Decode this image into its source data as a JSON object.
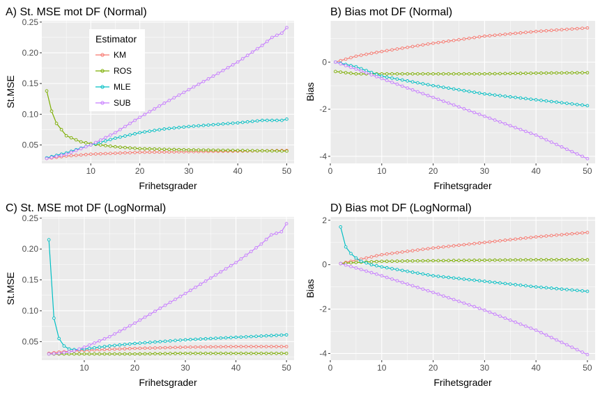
{
  "colors": {
    "KM": "#F8766D",
    "ROS": "#7CAE00",
    "MLE": "#00BFC4",
    "SUB": "#C77CFF",
    "panel_bg": "#EBEBEB",
    "grid": "#FFFFFF"
  },
  "legend": {
    "title": "Estimator",
    "entries": [
      "KM",
      "ROS",
      "MLE",
      "SUB"
    ]
  },
  "chart_data": [
    {
      "id": "A",
      "type": "line",
      "title": "A) St. MSE mot DF (Normal)",
      "xlabel": "Frihetsgrader",
      "ylabel": "St.MSE",
      "xlim": [
        0,
        51.5
      ],
      "ylim": [
        0.02,
        0.252
      ],
      "xticks": [
        10,
        20,
        30,
        40,
        50
      ],
      "yticks": [
        0.05,
        0.1,
        0.15,
        0.2,
        0.25
      ],
      "ytick_labels": [
        "0.05",
        "0.10",
        "0.15",
        "0.20",
        "0.25"
      ],
      "legend_position": "top-left",
      "x_start": 1,
      "x_end": 50,
      "series": [
        {
          "name": "KM",
          "anchors": [
            [
              1,
              0.028
            ],
            [
              5,
              0.032
            ],
            [
              10,
              0.035
            ],
            [
              20,
              0.038
            ],
            [
              30,
              0.039
            ],
            [
              40,
              0.04
            ],
            [
              50,
              0.041
            ]
          ]
        },
        {
          "name": "ROS",
          "anchors": [
            [
              1,
              0.138
            ],
            [
              2,
              0.105
            ],
            [
              3,
              0.085
            ],
            [
              5,
              0.065
            ],
            [
              8,
              0.055
            ],
            [
              10,
              0.052
            ],
            [
              15,
              0.047
            ],
            [
              20,
              0.044
            ],
            [
              30,
              0.042
            ],
            [
              40,
              0.041
            ],
            [
              50,
              0.04
            ]
          ]
        },
        {
          "name": "MLE",
          "anchors": [
            [
              1,
              0.029
            ],
            [
              5,
              0.037
            ],
            [
              10,
              0.05
            ],
            [
              15,
              0.061
            ],
            [
              20,
              0.07
            ],
            [
              25,
              0.076
            ],
            [
              30,
              0.08
            ],
            [
              40,
              0.086
            ],
            [
              45,
              0.09
            ],
            [
              49,
              0.09
            ],
            [
              50,
              0.092
            ]
          ]
        },
        {
          "name": "SUB",
          "anchors": [
            [
              1,
              0.028
            ],
            [
              5,
              0.035
            ],
            [
              10,
              0.05
            ],
            [
              15,
              0.07
            ],
            [
              20,
              0.095
            ],
            [
              25,
              0.118
            ],
            [
              30,
              0.14
            ],
            [
              35,
              0.162
            ],
            [
              40,
              0.185
            ],
            [
              45,
              0.212
            ],
            [
              47,
              0.225
            ],
            [
              49,
              0.232
            ],
            [
              50,
              0.241
            ]
          ]
        }
      ]
    },
    {
      "id": "B",
      "type": "line",
      "title": "B) Bias mot DF (Normal)",
      "xlabel": "Frihetsgrader",
      "ylabel": "Bias",
      "xlim": [
        0,
        51.5
      ],
      "ylim": [
        -4.3,
        1.75
      ],
      "xticks": [
        0,
        10,
        20,
        30,
        40,
        50
      ],
      "yticks": [
        -4,
        -2,
        0
      ],
      "ytick_labels": [
        "-4",
        "-2",
        "0"
      ],
      "x_start": 1,
      "x_end": 50,
      "series": [
        {
          "name": "KM",
          "anchors": [
            [
              1,
              0.0
            ],
            [
              5,
              0.25
            ],
            [
              10,
              0.45
            ],
            [
              20,
              0.8
            ],
            [
              30,
              1.1
            ],
            [
              40,
              1.3
            ],
            [
              50,
              1.45
            ]
          ]
        },
        {
          "name": "ROS",
          "anchors": [
            [
              1,
              -0.4
            ],
            [
              5,
              -0.5
            ],
            [
              10,
              -0.5
            ],
            [
              20,
              -0.5
            ],
            [
              30,
              -0.5
            ],
            [
              40,
              -0.47
            ],
            [
              50,
              -0.45
            ]
          ]
        },
        {
          "name": "MLE",
          "anchors": [
            [
              1,
              0.0
            ],
            [
              5,
              -0.2
            ],
            [
              10,
              -0.6
            ],
            [
              20,
              -1.0
            ],
            [
              30,
              -1.35
            ],
            [
              40,
              -1.6
            ],
            [
              50,
              -1.85
            ]
          ]
        },
        {
          "name": "SUB",
          "anchors": [
            [
              1,
              0.0
            ],
            [
              5,
              -0.3
            ],
            [
              10,
              -0.7
            ],
            [
              20,
              -1.5
            ],
            [
              30,
              -2.3
            ],
            [
              40,
              -3.1
            ],
            [
              50,
              -4.1
            ]
          ]
        }
      ]
    },
    {
      "id": "C",
      "type": "line",
      "title": "C) St. MSE mot DF (LogNormal)",
      "xlabel": "Frihetsgrader",
      "ylabel": "St.MSE",
      "xlim": [
        1.6,
        51.5
      ],
      "ylim": [
        0.02,
        0.252
      ],
      "xticks": [
        10,
        20,
        30,
        40,
        50
      ],
      "yticks": [
        0.05,
        0.1,
        0.15,
        0.2,
        0.25
      ],
      "ytick_labels": [
        "0.05",
        "0.10",
        "0.15",
        "0.20",
        "0.25"
      ],
      "x_start": 3,
      "x_end": 50,
      "series": [
        {
          "name": "KM",
          "anchors": [
            [
              3,
              0.031
            ],
            [
              5,
              0.033
            ],
            [
              10,
              0.036
            ],
            [
              20,
              0.039
            ],
            [
              30,
              0.041
            ],
            [
              40,
              0.042
            ],
            [
              50,
              0.042
            ]
          ]
        },
        {
          "name": "ROS",
          "anchors": [
            [
              3,
              0.03
            ],
            [
              5,
              0.03
            ],
            [
              10,
              0.03
            ],
            [
              20,
              0.03
            ],
            [
              30,
              0.031
            ],
            [
              40,
              0.031
            ],
            [
              50,
              0.031
            ]
          ]
        },
        {
          "name": "MLE",
          "anchors": [
            [
              3,
              0.215
            ],
            [
              4,
              0.088
            ],
            [
              5,
              0.055
            ],
            [
              6,
              0.043
            ],
            [
              7,
              0.038
            ],
            [
              8,
              0.037
            ],
            [
              10,
              0.038
            ],
            [
              15,
              0.043
            ],
            [
              20,
              0.047
            ],
            [
              30,
              0.053
            ],
            [
              40,
              0.057
            ],
            [
              50,
              0.061
            ]
          ]
        },
        {
          "name": "SUB",
          "anchors": [
            [
              3,
              0.03
            ],
            [
              5,
              0.031
            ],
            [
              8,
              0.035
            ],
            [
              10,
              0.041
            ],
            [
              15,
              0.058
            ],
            [
              20,
              0.08
            ],
            [
              25,
              0.104
            ],
            [
              30,
              0.128
            ],
            [
              35,
              0.153
            ],
            [
              40,
              0.178
            ],
            [
              45,
              0.208
            ],
            [
              47,
              0.223
            ],
            [
              49,
              0.228
            ],
            [
              50,
              0.241
            ]
          ]
        }
      ]
    },
    {
      "id": "D",
      "type": "line",
      "title": "D) Bias mot DF (LogNormal)",
      "xlabel": "Frihetsgrader",
      "ylabel": "Bias",
      "xlim": [
        0,
        51.5
      ],
      "ylim": [
        -4.3,
        2.15
      ],
      "xticks": [
        0,
        10,
        20,
        30,
        40,
        50
      ],
      "yticks": [
        -4,
        -2,
        0,
        2
      ],
      "ytick_labels": [
        "-4",
        "-2",
        "0",
        "2"
      ],
      "x_start": 2,
      "x_end": 50,
      "series": [
        {
          "name": "KM",
          "anchors": [
            [
              2,
              0.05
            ],
            [
              5,
              0.2
            ],
            [
              10,
              0.45
            ],
            [
              20,
              0.75
            ],
            [
              30,
              1.0
            ],
            [
              40,
              1.25
            ],
            [
              50,
              1.45
            ]
          ]
        },
        {
          "name": "ROS",
          "anchors": [
            [
              2,
              0.05
            ],
            [
              5,
              0.1
            ],
            [
              10,
              0.15
            ],
            [
              20,
              0.18
            ],
            [
              30,
              0.2
            ],
            [
              40,
              0.22
            ],
            [
              50,
              0.22
            ]
          ]
        },
        {
          "name": "MLE",
          "anchors": [
            [
              2,
              1.7
            ],
            [
              3,
              0.8
            ],
            [
              4,
              0.5
            ],
            [
              5,
              0.3
            ],
            [
              6,
              0.15
            ],
            [
              8,
              0.0
            ],
            [
              10,
              -0.1
            ],
            [
              20,
              -0.5
            ],
            [
              30,
              -0.75
            ],
            [
              40,
              -1.0
            ],
            [
              50,
              -1.2
            ]
          ]
        },
        {
          "name": "SUB",
          "anchors": [
            [
              2,
              0.05
            ],
            [
              5,
              -0.15
            ],
            [
              10,
              -0.5
            ],
            [
              20,
              -1.25
            ],
            [
              30,
              -2.05
            ],
            [
              40,
              -2.95
            ],
            [
              50,
              -4.05
            ]
          ]
        }
      ]
    }
  ]
}
